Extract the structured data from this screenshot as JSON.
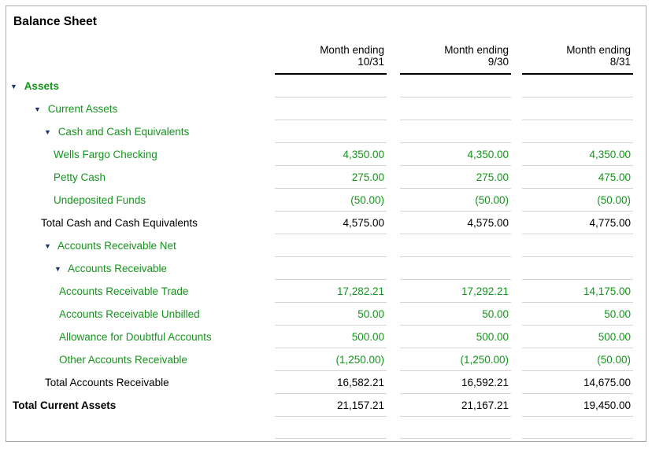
{
  "report": {
    "title": "Balance Sheet"
  },
  "columns": [
    {
      "line1": "Month ending",
      "line2": "10/31"
    },
    {
      "line1": "Month ending",
      "line2": "9/30"
    },
    {
      "line1": "Month ending",
      "line2": "8/31"
    }
  ],
  "rows": [
    {
      "label": "Assets",
      "kind": "group",
      "level": 1,
      "expanded": true,
      "emphasis": true,
      "values": [
        "",
        "",
        ""
      ]
    },
    {
      "label": "Current Assets",
      "kind": "group",
      "level": 2,
      "expanded": true,
      "emphasis": false,
      "values": [
        "",
        "",
        ""
      ]
    },
    {
      "label": "Cash and Cash Equivalents",
      "kind": "group",
      "level": 3,
      "expanded": true,
      "emphasis": false,
      "values": [
        "",
        "",
        ""
      ]
    },
    {
      "label": "Wells Fargo Checking",
      "kind": "account",
      "level": 3,
      "expanded": false,
      "emphasis": false,
      "values": [
        "4,350.00",
        "4,350.00",
        "4,350.00"
      ]
    },
    {
      "label": "Petty Cash",
      "kind": "account",
      "level": 3,
      "expanded": false,
      "emphasis": false,
      "values": [
        "275.00",
        "275.00",
        "475.00"
      ]
    },
    {
      "label": "Undeposited Funds",
      "kind": "account",
      "level": 3,
      "expanded": false,
      "emphasis": false,
      "values": [
        "(50.00)",
        "(50.00)",
        "(50.00)"
      ]
    },
    {
      "label": "Total Cash and Cash Equivalents",
      "kind": "total",
      "level": 3,
      "expanded": false,
      "emphasis": false,
      "values": [
        "4,575.00",
        "4,575.00",
        "4,775.00"
      ]
    },
    {
      "label": "Accounts Receivable Net",
      "kind": "group",
      "level": 3,
      "expanded": true,
      "emphasis": false,
      "values": [
        "",
        "",
        ""
      ]
    },
    {
      "label": "Accounts Receivable",
      "kind": "group",
      "level": 4,
      "expanded": true,
      "emphasis": false,
      "values": [
        "",
        "",
        ""
      ]
    },
    {
      "label": "Accounts Receivable Trade",
      "kind": "account",
      "level": 4,
      "expanded": false,
      "emphasis": false,
      "values": [
        "17,282.21",
        "17,292.21",
        "14,175.00"
      ]
    },
    {
      "label": "Accounts Receivable Unbilled",
      "kind": "account",
      "level": 4,
      "expanded": false,
      "emphasis": false,
      "values": [
        "50.00",
        "50.00",
        "50.00"
      ]
    },
    {
      "label": "Allowance for Doubtful Accounts",
      "kind": "account",
      "level": 4,
      "expanded": false,
      "emphasis": false,
      "values": [
        "500.00",
        "500.00",
        "500.00"
      ]
    },
    {
      "label": "Other Accounts Receivable",
      "kind": "account",
      "level": 4,
      "expanded": false,
      "emphasis": false,
      "values": [
        "(1,250.00)",
        "(1,250.00)",
        "(50.00)"
      ]
    },
    {
      "label": "Total Accounts Receivable",
      "kind": "total",
      "level": 4,
      "expanded": false,
      "emphasis": false,
      "values": [
        "16,582.21",
        "16,592.21",
        "14,675.00"
      ]
    },
    {
      "label": "Total Current Assets",
      "kind": "grandtotal",
      "level": 2,
      "expanded": false,
      "emphasis": true,
      "values": [
        "21,157.21",
        "21,167.21",
        "19,450.00"
      ]
    }
  ],
  "icons": {
    "collapse_triangle": "▼"
  },
  "colors": {
    "link_green": "#15941c",
    "triangle_navy": "#1f3270",
    "separator_gray": "#d4d4d4",
    "header_underline": "#000000",
    "page_border": "#a9a9a9",
    "total_text": "#000000"
  }
}
